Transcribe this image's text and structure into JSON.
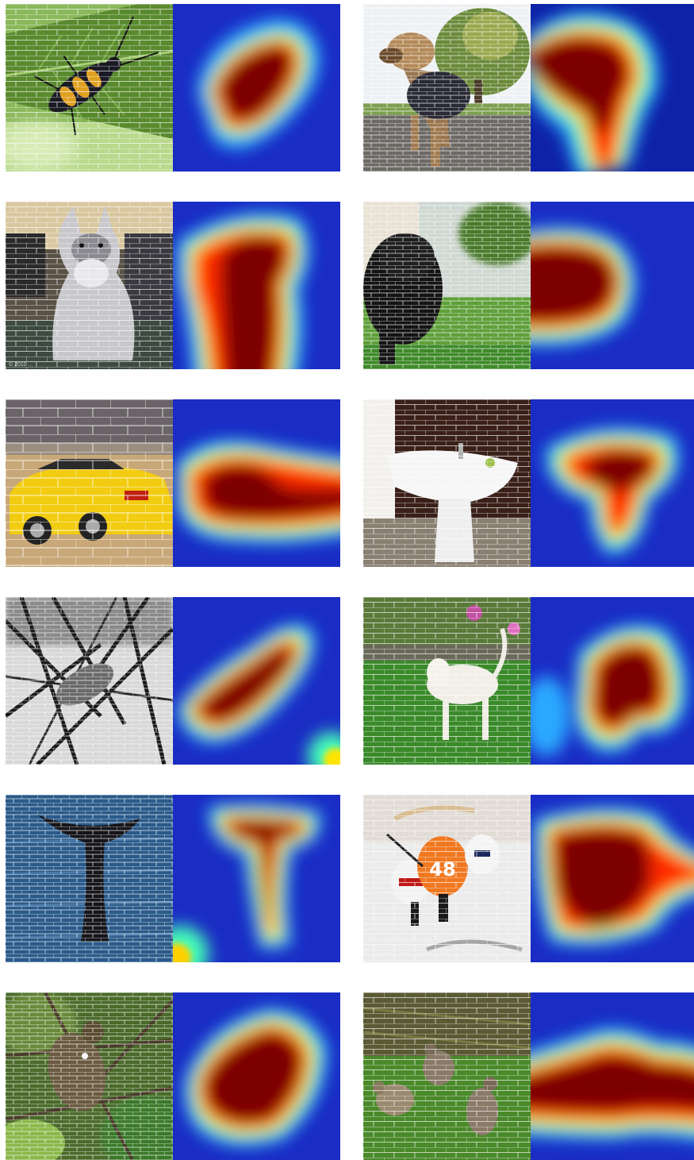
{
  "figure": {
    "rows": [
      {
        "left": {
          "photo": "beetle-on-leaf-photo",
          "heatmap": "beetle-attention-heatmap"
        },
        "right": {
          "photo": "dog-jumping-photo",
          "heatmap": "dog-jumping-attention-heatmap"
        }
      },
      {
        "left": {
          "photo": "schnauzer-dog-photo",
          "heatmap": "schnauzer-attention-heatmap",
          "watermark": "© 2010 ..."
        },
        "right": {
          "photo": "black-poodle-photo",
          "heatmap": "poodle-attention-heatmap"
        }
      },
      {
        "left": {
          "photo": "yellow-convertible-photo",
          "heatmap": "car-attention-heatmap"
        },
        "right": {
          "photo": "bathroom-sink-photo",
          "heatmap": "sink-attention-heatmap"
        }
      },
      {
        "left": {
          "photo": "bird-in-branches-photo",
          "heatmap": "branches-attention-heatmap"
        },
        "right": {
          "photo": "white-dog-in-garden-photo",
          "heatmap": "white-dog-attention-heatmap"
        }
      },
      {
        "left": {
          "photo": "whale-tail-photo",
          "heatmap": "whale-attention-heatmap"
        },
        "right": {
          "photo": "hockey-players-photo",
          "heatmap": "hockey-attention-heatmap",
          "jersey_number": "48"
        }
      },
      {
        "left": {
          "photo": "heron-on-branch-photo",
          "heatmap": "heron-attention-heatmap"
        },
        "right": {
          "photo": "partridges-on-grass-photo",
          "heatmap": "partridges-attention-heatmap"
        }
      }
    ],
    "colors": {
      "heatmap_low": "#0a1e9e",
      "heatmap_mid": "#2aa9ff",
      "heatmap_high": "#7c0000",
      "grid_line": "#ffffff"
    }
  }
}
